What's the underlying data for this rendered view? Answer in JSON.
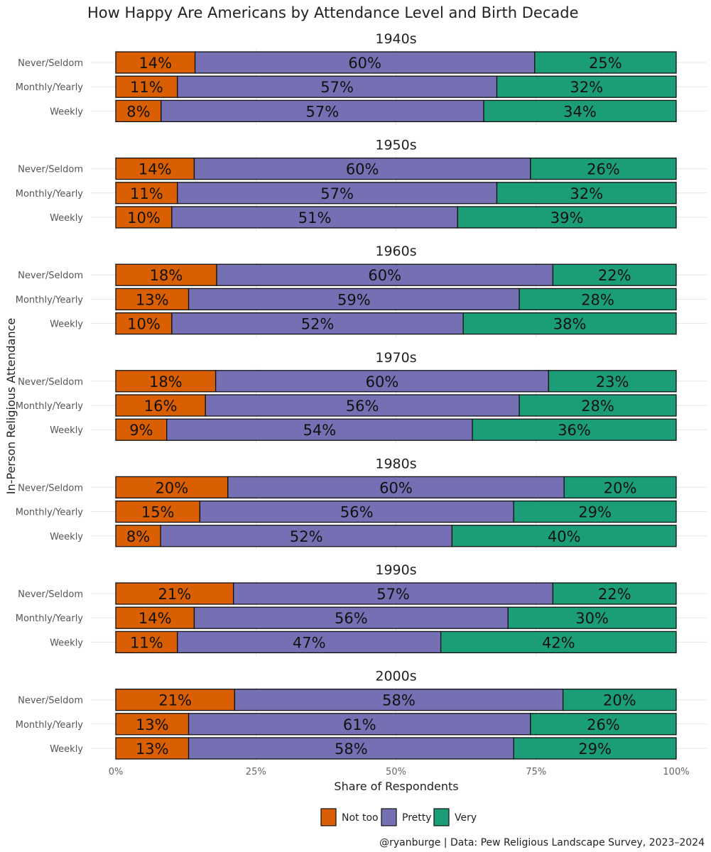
{
  "chart_data": {
    "type": "bar",
    "orientation": "horizontal",
    "stacked": true,
    "title": "How Happy Are Americans by Attendance Level and Birth Decade",
    "xlabel": "Share of Respondents",
    "ylabel": "In-Person Religious Attendance",
    "xlim": [
      0,
      100
    ],
    "x_ticks": [
      "0%",
      "25%",
      "50%",
      "75%",
      "100%"
    ],
    "grid": true,
    "legend_position": "bottom",
    "caption": "@ryanburge | Data: Pew Religious Landscape Survey, 2023–2024",
    "categories": [
      "Never/Seldom",
      "Monthly/Yearly",
      "Weekly"
    ],
    "series": [
      {
        "name": "Not too",
        "color": "#d95f02"
      },
      {
        "name": "Pretty",
        "color": "#7570b3"
      },
      {
        "name": "Very",
        "color": "#1b9e77"
      }
    ],
    "facets": [
      {
        "title": "1940s",
        "values": [
          [
            14,
            60,
            25
          ],
          [
            11,
            57,
            32
          ],
          [
            8,
            57,
            34
          ]
        ]
      },
      {
        "title": "1950s",
        "values": [
          [
            14,
            60,
            26
          ],
          [
            11,
            57,
            32
          ],
          [
            10,
            51,
            39
          ]
        ]
      },
      {
        "title": "1960s",
        "values": [
          [
            18,
            60,
            22
          ],
          [
            13,
            59,
            28
          ],
          [
            10,
            52,
            38
          ]
        ]
      },
      {
        "title": "1970s",
        "values": [
          [
            18,
            60,
            23
          ],
          [
            16,
            56,
            28
          ],
          [
            9,
            54,
            36
          ]
        ]
      },
      {
        "title": "1980s",
        "values": [
          [
            20,
            60,
            20
          ],
          [
            15,
            56,
            29
          ],
          [
            8,
            52,
            40
          ]
        ]
      },
      {
        "title": "1990s",
        "values": [
          [
            21,
            57,
            22
          ],
          [
            14,
            56,
            30
          ],
          [
            11,
            47,
            42
          ]
        ]
      },
      {
        "title": "2000s",
        "values": [
          [
            21,
            58,
            20
          ],
          [
            13,
            61,
            26
          ],
          [
            13,
            58,
            29
          ]
        ]
      }
    ]
  }
}
